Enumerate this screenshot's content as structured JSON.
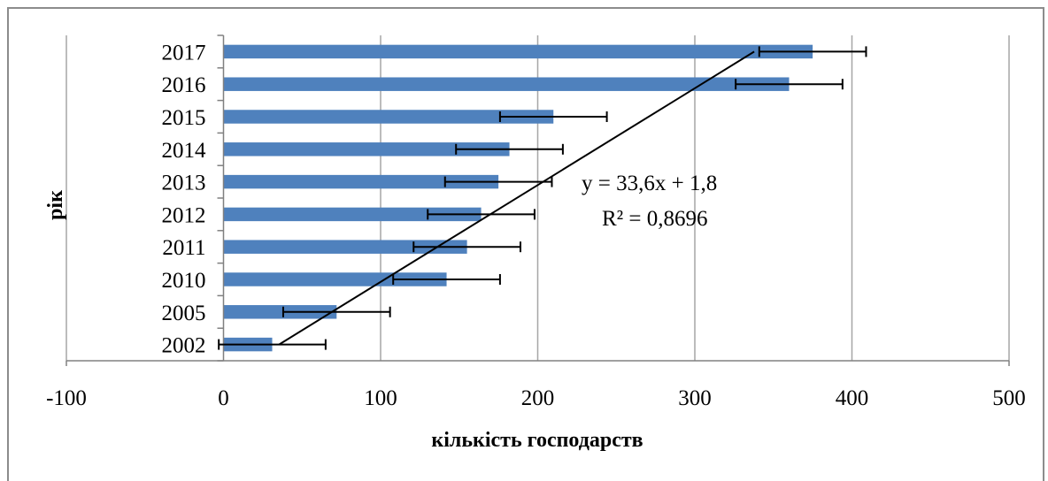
{
  "chart_data": {
    "type": "bar",
    "orientation": "horizontal",
    "categories": [
      "2002",
      "2005",
      "2010",
      "2011",
      "2012",
      "2013",
      "2014",
      "2015",
      "2016",
      "2017"
    ],
    "values": [
      31,
      72,
      142,
      155,
      164,
      175,
      182,
      210,
      360,
      375
    ],
    "error_bars": [
      34,
      34,
      34,
      34,
      34,
      34,
      34,
      34,
      34,
      34
    ],
    "xlabel": "кількість господарств",
    "ylabel": "рік",
    "xlim": [
      -100,
      500
    ],
    "xticks": [
      "-100",
      "0",
      "100",
      "200",
      "300",
      "400",
      "500"
    ],
    "grid": "vertical",
    "trendline": {
      "type": "linear",
      "slope": 33.6,
      "intercept": 1.8,
      "equation": "y = 33,6x + 1,8",
      "r2": "R² = 0,8696"
    },
    "colors": {
      "bar": "#4f81bd",
      "gridline": "#a6a6a6",
      "trendline": "#000000",
      "error_bar": "#000000"
    }
  }
}
